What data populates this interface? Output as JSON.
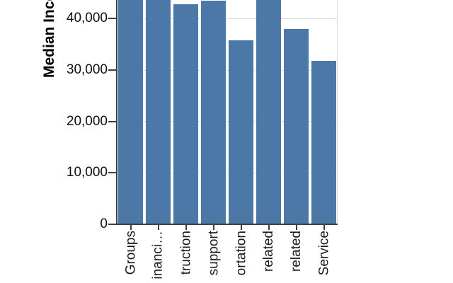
{
  "chart": {
    "y_axis": {
      "title": "Median Income",
      "tick_labels": [
        "0",
        "10,000",
        "20,000",
        "30,000",
        "40,000"
      ],
      "tick_values": [
        0,
        10000,
        20000,
        30000,
        40000
      ]
    },
    "x_axis": {
      "tick_labels": [
        "Groups",
        "inanci…",
        "truction",
        "support",
        "ortation",
        "related",
        "related",
        "Service"
      ]
    },
    "colors": {
      "bar": "#4c78a8",
      "axis": "#3f3f3f",
      "grid": "#dcdcdc",
      "plot_border": "#d9d9d9",
      "label": "#111111"
    }
  },
  "chart_data": {
    "type": "bar",
    "title": "",
    "xlabel": "",
    "ylabel": "Median Income",
    "categories": [
      "Groups",
      "inanci…",
      "truction",
      "support",
      "ortation",
      "related",
      "related",
      "Service"
    ],
    "values": [
      46000,
      46000,
      42800,
      43500,
      35800,
      46000,
      38000,
      31800
    ],
    "clipped_above_view": [
      true,
      true,
      false,
      false,
      false,
      true,
      false,
      false
    ],
    "yticks": [
      0,
      10000,
      20000,
      30000,
      40000
    ],
    "ylim_visible": [
      0,
      43600
    ],
    "grid": "on",
    "legend": "none",
    "note": "cropped view: bars 1,2,6 and the y-axis title run past the top edge; rotated x labels are truncated by the bottom edge"
  }
}
